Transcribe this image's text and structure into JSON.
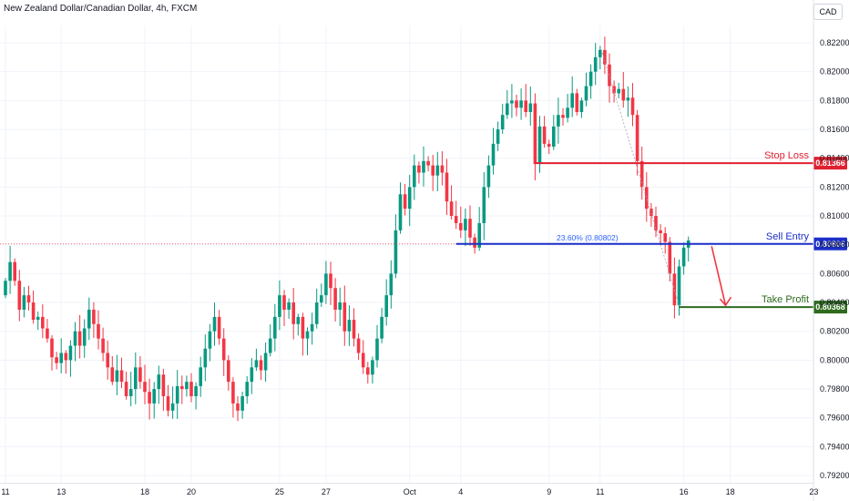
{
  "header": {
    "title": "New Zealand Dollar/Canadian Dollar, 4h, FXCM",
    "currency_button": "CAD"
  },
  "colors": {
    "up": "#089981",
    "down": "#f23645",
    "stop": "#e02030",
    "entry": "#1c2fc8",
    "tp": "#2e6b1e",
    "fib": "#2962ff",
    "grid": "#f0f3fa",
    "axis_text": "#131722"
  },
  "chart_data": {
    "type": "candlestick",
    "symbol": "NZDCAD",
    "timeframe": "4h",
    "ylim": [
      0.7915,
      0.8232
    ],
    "y_ticks": [
      "0.82200",
      "0.82000",
      "0.81800",
      "0.81600",
      "0.81400",
      "0.81200",
      "0.81000",
      "0.80800",
      "0.80600",
      "0.80400",
      "0.80200",
      "0.80000",
      "0.79800",
      "0.79600",
      "0.79400",
      "0.79200"
    ],
    "x_ticks": [
      {
        "label": "11",
        "bar": 0
      },
      {
        "label": "13",
        "bar": 12
      },
      {
        "label": "18",
        "bar": 30
      },
      {
        "label": "20",
        "bar": 40
      },
      {
        "label": "25",
        "bar": 59
      },
      {
        "label": "27",
        "bar": 69
      },
      {
        "label": "Oct",
        "bar": 87
      },
      {
        "label": "4",
        "bar": 98
      },
      {
        "label": "9",
        "bar": 117
      },
      {
        "label": "11",
        "bar": 128
      },
      {
        "label": "16",
        "bar": 146
      },
      {
        "label": "18",
        "bar": 156
      },
      {
        "label": "23",
        "bar": 174
      }
    ],
    "closes": [
      0.8055,
      0.8068,
      0.8055,
      0.8035,
      0.8045,
      0.804,
      0.8028,
      0.803,
      0.8022,
      0.8015,
      0.8002,
      0.7998,
      0.8005,
      0.8,
      0.801,
      0.802,
      0.801,
      0.8022,
      0.8035,
      0.8025,
      0.8015,
      0.8005,
      0.7995,
      0.7985,
      0.7993,
      0.7985,
      0.7975,
      0.798,
      0.7995,
      0.7985,
      0.7978,
      0.797,
      0.798,
      0.799,
      0.7975,
      0.7965,
      0.797,
      0.7982,
      0.798,
      0.7985,
      0.7975,
      0.7982,
      0.7995,
      0.8008,
      0.802,
      0.803,
      0.8015,
      0.8,
      0.7985,
      0.797,
      0.7965,
      0.7975,
      0.7985,
      0.7995,
      0.8,
      0.7993,
      0.8005,
      0.8015,
      0.803,
      0.8045,
      0.8035,
      0.804,
      0.8025,
      0.803,
      0.8015,
      0.802,
      0.8025,
      0.804,
      0.8045,
      0.806,
      0.805,
      0.8035,
      0.804,
      0.802,
      0.8028,
      0.8015,
      0.8005,
      0.7995,
      0.799,
      0.8,
      0.8015,
      0.803,
      0.8045,
      0.806,
      0.809,
      0.8115,
      0.8105,
      0.812,
      0.8135,
      0.813,
      0.8138,
      0.8135,
      0.8128,
      0.8135,
      0.813,
      0.811,
      0.81,
      0.8095,
      0.809,
      0.8098,
      0.8085,
      0.8078,
      0.8095,
      0.812,
      0.8135,
      0.815,
      0.816,
      0.817,
      0.8178,
      0.818,
      0.8175,
      0.818,
      0.8172,
      0.8178,
      0.8136,
      0.8162,
      0.815,
      0.8148,
      0.8162,
      0.817,
      0.8168,
      0.8175,
      0.8185,
      0.8172,
      0.818,
      0.819,
      0.82,
      0.821,
      0.8215,
      0.8205,
      0.819,
      0.8185,
      0.8188,
      0.818,
      0.8182,
      0.817,
      0.8138,
      0.812,
      0.8105,
      0.81,
      0.809,
      0.8088,
      0.8082,
      0.806,
      0.8038,
      0.8065,
      0.8078,
      0.8083
    ],
    "levels": [
      {
        "name": "Stop Loss",
        "value": 0.81366,
        "tag": "0.81366",
        "from_bar": 114
      },
      {
        "name": "Sell Entry",
        "value": 0.80806,
        "tag": "0.80806",
        "from_bar": 97
      },
      {
        "name": "Take Profit",
        "value": 0.80368,
        "tag": "0.80368",
        "from_bar": 145
      }
    ],
    "fib_label": "23.60% (0.80802)",
    "arrow": {
      "from_bar": 152,
      "from_value": 0.8079,
      "to_bar": 155,
      "to_value": 0.8038
    }
  }
}
